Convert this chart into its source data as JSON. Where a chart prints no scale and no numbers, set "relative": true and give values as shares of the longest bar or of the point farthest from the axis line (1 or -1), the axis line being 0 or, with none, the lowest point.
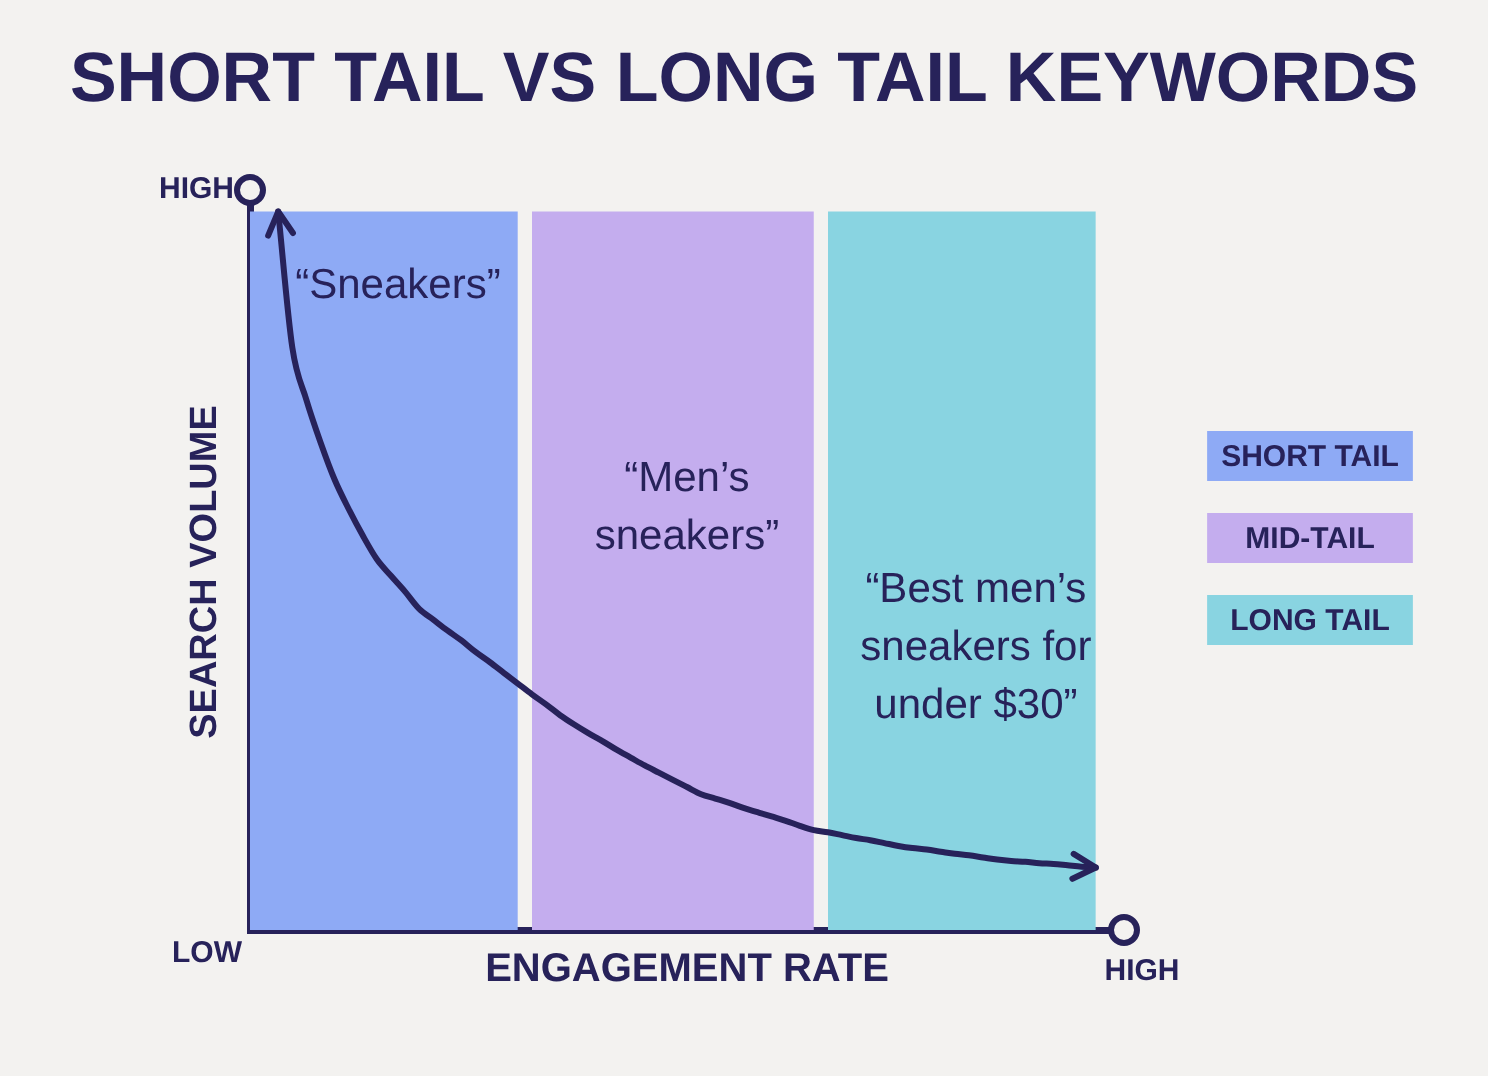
{
  "chart_data": {
    "type": "line",
    "title": "SHORT TAIL VS LONG TAIL KEYWORDS",
    "xlabel": "ENGAGEMENT RATE",
    "ylabel": "SEARCH VOLUME",
    "relative": true,
    "categories": [
      null,
      null,
      null,
      null,
      null,
      null,
      null,
      null,
      null,
      null,
      null,
      null,
      null,
      null,
      null,
      null,
      null,
      null,
      null,
      null,
      null,
      null,
      null,
      null,
      null,
      null,
      null,
      null,
      null,
      null,
      null,
      null,
      null,
      null,
      null,
      null,
      null,
      null,
      null,
      null,
      null,
      null,
      null,
      null,
      null,
      null,
      null,
      null,
      null,
      null,
      null,
      null,
      null,
      null,
      null,
      null,
      null,
      null,
      null,
      null,
      null,
      null,
      null
    ],
    "series": [
      {
        "color": "#27225a",
        "values": [
          null,
          null,
          1,
          0.811,
          0.738,
          0.679,
          0.627,
          0.586,
          0.549,
          0.516,
          0.493,
          0.471,
          0.447,
          0.432,
          0.417,
          0.403,
          0.387,
          0.373,
          0.358,
          0.343,
          0.328,
          0.314,
          0.299,
          0.286,
          0.274,
          0.263,
          0.251,
          0.24,
          0.229,
          0.219,
          0.209,
          0.199,
          0.189,
          0.183,
          0.177,
          0.17,
          0.164,
          0.158,
          0.152,
          0.145,
          0.139,
          0.136,
          0.132,
          0.128,
          0.125,
          0.121,
          0.117,
          0.114,
          0.112,
          0.109,
          0.106,
          0.104,
          0.101,
          0.098,
          0.096,
          0.095,
          0.093,
          0.092,
          0.09,
          0.088,
          0.087,
          null,
          null
        ]
      },
      {
        "type": "area",
        "name": "SHORT TAIL",
        "color": "#8eaaf5",
        "values": [
          1,
          1,
          1,
          1,
          1,
          1,
          1,
          1,
          1,
          1,
          1,
          1,
          1,
          1,
          1,
          1,
          1,
          1,
          1,
          1,
          null,
          null,
          null,
          null,
          null,
          null,
          null,
          null,
          null,
          null,
          null,
          null,
          null,
          null,
          null,
          null,
          null,
          null,
          null,
          null,
          null,
          null,
          null,
          null,
          null,
          null,
          null,
          null,
          null,
          null,
          null,
          null,
          null,
          null,
          null,
          null,
          null,
          null,
          null,
          null,
          null,
          null,
          null
        ]
      },
      {
        "type": "area",
        "name": "MID-TAIL",
        "color": "#c4adee",
        "values": [
          null,
          null,
          null,
          null,
          null,
          null,
          null,
          null,
          null,
          null,
          null,
          null,
          null,
          null,
          null,
          null,
          null,
          null,
          null,
          null,
          1,
          1,
          1,
          1,
          1,
          1,
          1,
          1,
          1,
          1,
          1,
          1,
          1,
          1,
          1,
          1,
          1,
          1,
          1,
          1,
          1,
          null,
          null,
          null,
          null,
          null,
          null,
          null,
          null,
          null,
          null,
          null,
          null,
          null,
          null,
          null,
          null,
          null,
          null,
          null,
          null,
          null,
          null
        ]
      },
      {
        "type": "area",
        "name": "LONG TAIL",
        "color": "#89d4e1",
        "values": [
          null,
          null,
          null,
          null,
          null,
          null,
          null,
          null,
          null,
          null,
          null,
          null,
          null,
          null,
          null,
          null,
          null,
          null,
          null,
          null,
          null,
          null,
          null,
          null,
          null,
          null,
          null,
          null,
          null,
          null,
          null,
          null,
          null,
          null,
          null,
          null,
          null,
          null,
          null,
          null,
          null,
          1,
          1,
          1,
          1,
          1,
          1,
          1,
          1,
          1,
          1,
          1,
          1,
          1,
          1,
          1,
          1,
          1,
          1,
          1,
          1,
          null,
          null
        ]
      }
    ],
    "annotations": [
      "HIGH",
      "LOW",
      "HIGH",
      "“Sneakers”",
      "“Men’s\nsneakers”",
      "“Best men’s\nsneakers for\nunder $30”"
    ],
    "legend": "right"
  }
}
